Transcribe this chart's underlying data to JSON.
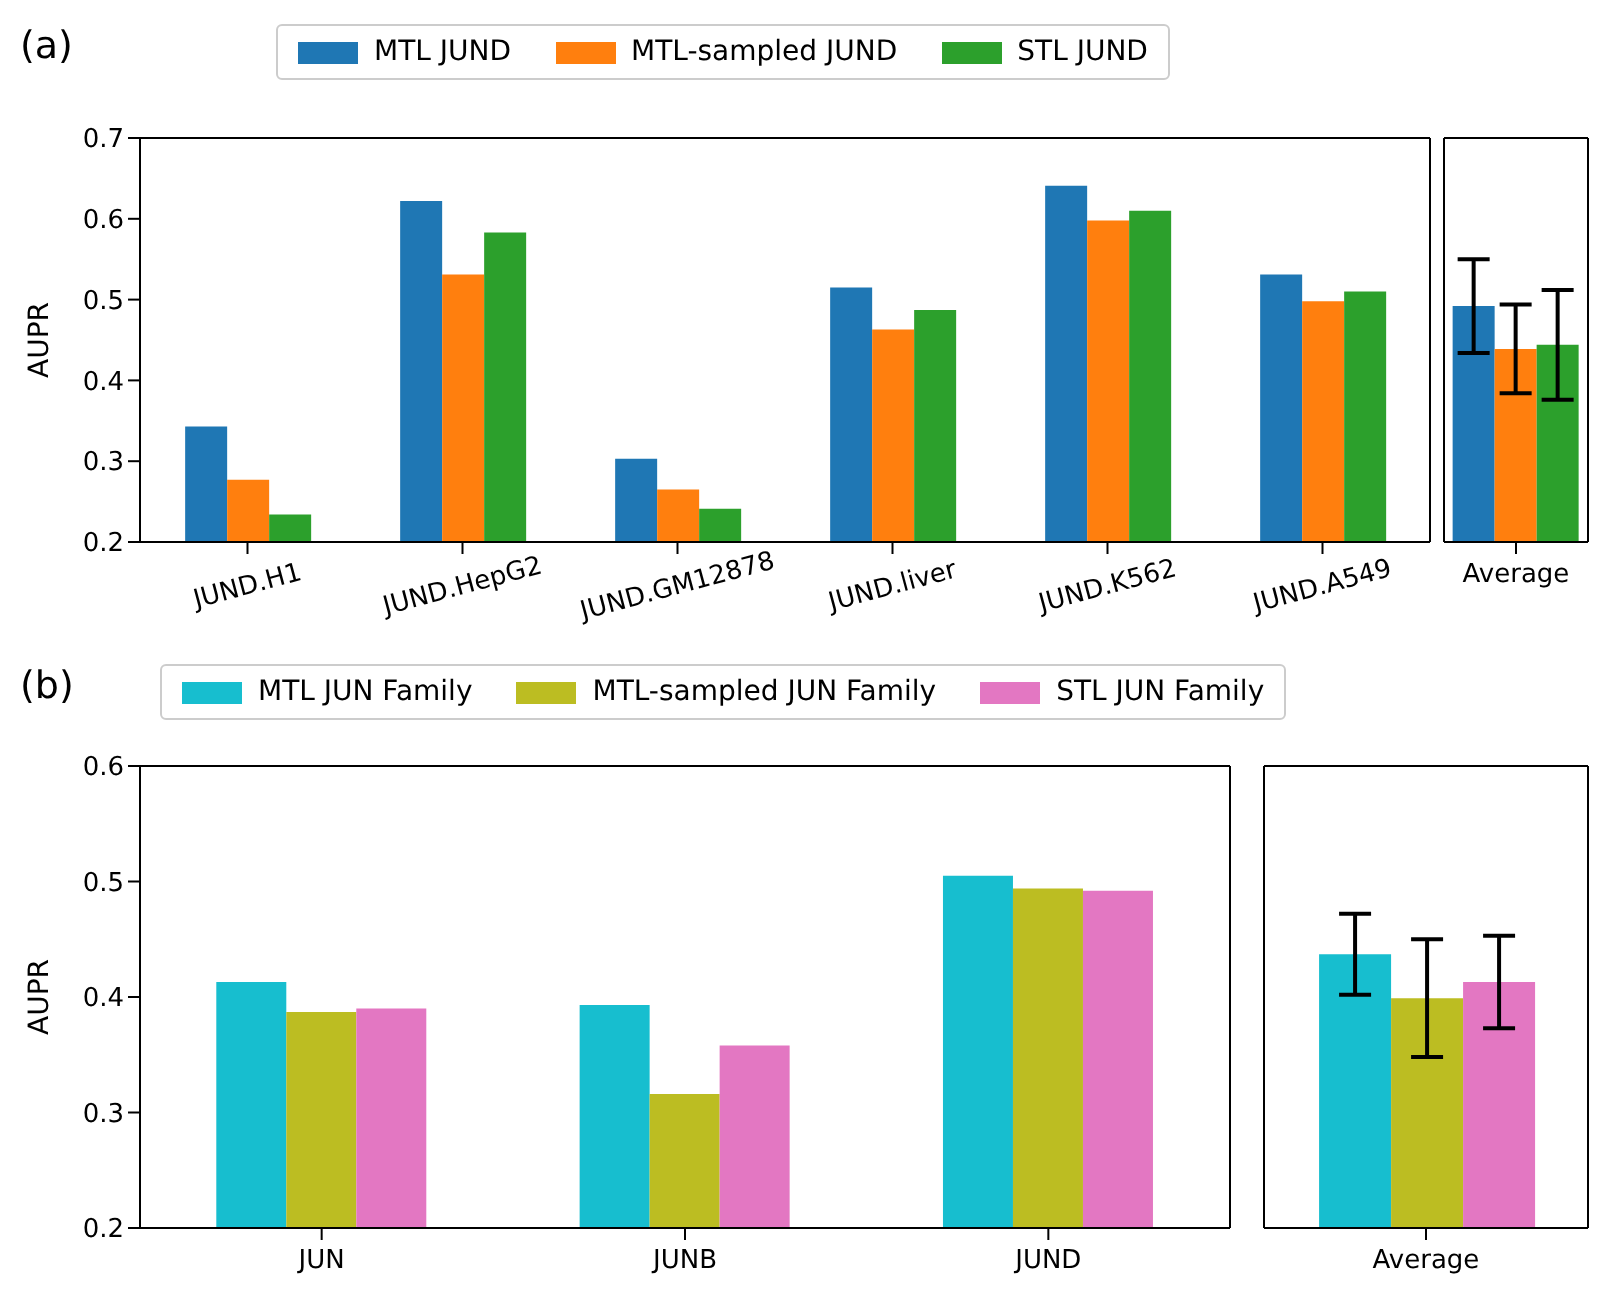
{
  "chart_data": [
    {
      "type": "bar",
      "title": "(a)",
      "ylabel": "AUPR",
      "categories": [
        "JUND.H1",
        "JUND.HepG2",
        "JUND.GM12878",
        "JUND.liver",
        "JUND.K562",
        "JUND.A549"
      ],
      "series": [
        {
          "name": "MTL JUND",
          "color": "#1f77b4",
          "values": [
            0.343,
            0.622,
            0.303,
            0.515,
            0.641,
            0.531
          ]
        },
        {
          "name": "MTL-sampled JUND",
          "color": "#ff7f0e",
          "values": [
            0.277,
            0.531,
            0.265,
            0.463,
            0.598,
            0.498
          ]
        },
        {
          "name": "STL JUND",
          "color": "#2ca02c",
          "values": [
            0.234,
            0.583,
            0.241,
            0.487,
            0.61,
            0.51
          ]
        }
      ],
      "ylim": [
        0.2,
        0.7
      ],
      "yticks": [
        0.2,
        0.3,
        0.4,
        0.5,
        0.6,
        0.7
      ],
      "legend": "top"
    },
    {
      "type": "bar",
      "categories": [
        "Average"
      ],
      "series": [
        {
          "color": "#1f77b4",
          "values": [
            0.492
          ],
          "errors": [
            0.058
          ]
        },
        {
          "color": "#ff7f0e",
          "values": [
            0.439
          ],
          "errors": [
            0.055
          ]
        },
        {
          "color": "#2ca02c",
          "values": [
            0.444
          ],
          "errors": [
            0.068
          ]
        }
      ],
      "ylim": [
        0.2,
        0.7
      ],
      "tick_labels": "x"
    },
    {
      "type": "bar",
      "title": "(b)",
      "ylabel": "AUPR",
      "categories": [
        "JUN",
        "JUNB",
        "JUND"
      ],
      "series": [
        {
          "name": "MTL JUN Family",
          "color": "#17becf",
          "values": [
            0.413,
            0.393,
            0.505
          ]
        },
        {
          "name": "MTL-sampled JUN Family",
          "color": "#bcbd22",
          "values": [
            0.387,
            0.316,
            0.494
          ]
        },
        {
          "name": "STL JUN Family",
          "color": "#e377c2",
          "values": [
            0.39,
            0.358,
            0.492
          ]
        }
      ],
      "ylim": [
        0.2,
        0.6
      ],
      "yticks": [
        0.2,
        0.3,
        0.4,
        0.5,
        0.6
      ],
      "legend": "top"
    },
    {
      "type": "bar",
      "categories": [
        "Average"
      ],
      "series": [
        {
          "color": "#17becf",
          "values": [
            0.437
          ],
          "errors": [
            0.035
          ]
        },
        {
          "color": "#bcbd22",
          "values": [
            0.399
          ],
          "errors": [
            0.051
          ]
        },
        {
          "color": "#e377c2",
          "values": [
            0.413
          ],
          "errors": [
            0.04
          ]
        }
      ],
      "ylim": [
        0.2,
        0.6
      ],
      "tick_labels": "x"
    }
  ]
}
